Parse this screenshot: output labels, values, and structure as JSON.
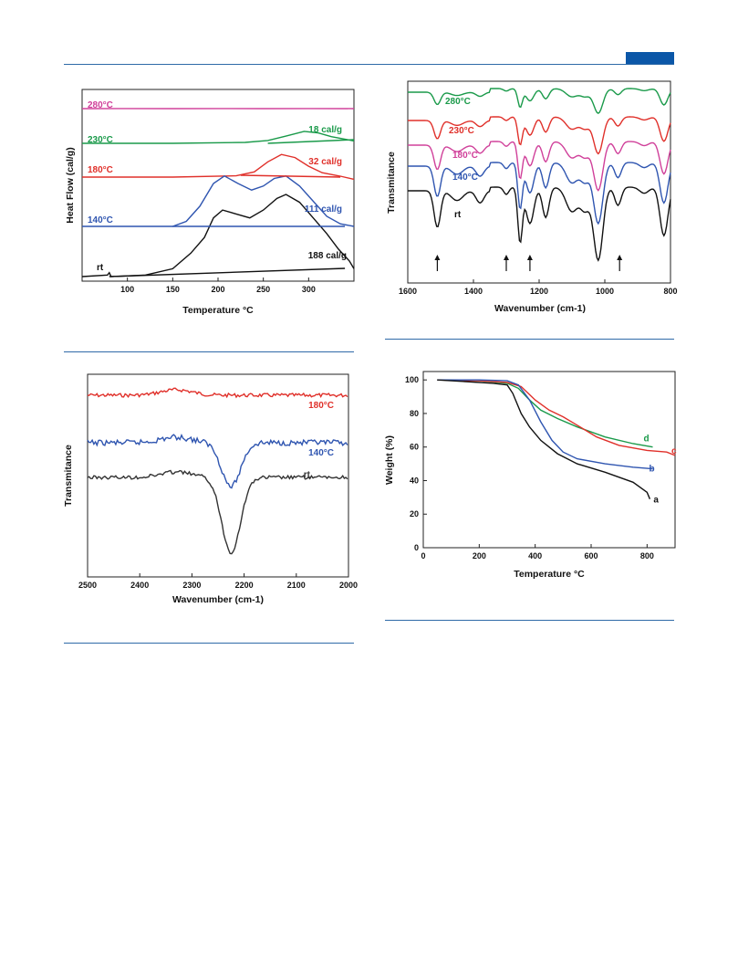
{
  "charts": {
    "dsc": {
      "xlabel": "Temperature °C",
      "ylabel": "Heat Flow (cal/g)",
      "xlim": [
        50,
        350
      ],
      "xticks": [
        "100",
        "150",
        "200",
        "250",
        "300"
      ],
      "curves": [
        {
          "label": "280°C",
          "color": "#d0409a",
          "points": [
            [
              50,
              0
            ],
            [
              100,
              0.01
            ],
            [
              150,
              0
            ],
            [
              200,
              0.01
            ],
            [
              250,
              0
            ],
            [
              300,
              0.01
            ],
            [
              350,
              0
            ]
          ]
        },
        {
          "label": "230°C",
          "color": "#1a9a4a",
          "peak_label": "18 cal/g",
          "points": [
            [
              50,
              0
            ],
            [
              150,
              0
            ],
            [
              230,
              0.02
            ],
            [
              255,
              0.06
            ],
            [
              275,
              0.15
            ],
            [
              295,
              0.25
            ],
            [
              310,
              0.22
            ],
            [
              325,
              0.14
            ],
            [
              350,
              0.05
            ]
          ]
        },
        {
          "label": "180°C",
          "color": "#e0302a",
          "peak_label": "32 cal/g",
          "points": [
            [
              50,
              0
            ],
            [
              150,
              0
            ],
            [
              220,
              0.03
            ],
            [
              240,
              0.12
            ],
            [
              255,
              0.35
            ],
            [
              270,
              0.52
            ],
            [
              285,
              0.45
            ],
            [
              300,
              0.25
            ],
            [
              315,
              0.1
            ],
            [
              335,
              0.02
            ],
            [
              350,
              -0.05
            ]
          ]
        },
        {
          "label": "140°C",
          "color": "#2f55b0",
          "peak_label": "111 cal/g",
          "points": [
            [
              50,
              0
            ],
            [
              150,
              0
            ],
            [
              165,
              0.1
            ],
            [
              180,
              0.4
            ],
            [
              195,
              0.85
            ],
            [
              207,
              1.0
            ],
            [
              222,
              0.85
            ],
            [
              237,
              0.72
            ],
            [
              250,
              0.8
            ],
            [
              262,
              0.95
            ],
            [
              275,
              1.0
            ],
            [
              290,
              0.8
            ],
            [
              305,
              0.5
            ],
            [
              320,
              0.2
            ],
            [
              335,
              0.05
            ],
            [
              350,
              0
            ]
          ]
        },
        {
          "label": "rt",
          "color": "#111111",
          "peak_label": "188 cal/g",
          "points": [
            [
              50,
              0
            ],
            [
              78,
              0.02
            ],
            [
              80,
              0.05
            ],
            [
              82,
              0
            ],
            [
              120,
              0.02
            ],
            [
              150,
              0.1
            ],
            [
              170,
              0.3
            ],
            [
              185,
              0.5
            ],
            [
              195,
              0.75
            ],
            [
              205,
              0.85
            ],
            [
              220,
              0.8
            ],
            [
              235,
              0.75
            ],
            [
              250,
              0.85
            ],
            [
              265,
              1.0
            ],
            [
              275,
              1.05
            ],
            [
              290,
              0.95
            ],
            [
              305,
              0.75
            ],
            [
              320,
              0.55
            ],
            [
              333,
              0.35
            ],
            [
              345,
              0.2
            ],
            [
              350,
              0.1
            ]
          ]
        }
      ]
    },
    "ftir_main": {
      "xlabel": "Wavenumber (cm-1)",
      "ylabel": "Transmitance",
      "xlim": [
        1600,
        800
      ],
      "xticks": [
        "1600",
        "1400",
        "1200",
        "1000",
        "800"
      ],
      "curves": [
        {
          "label": "280°C",
          "color": "#1a9a4a"
        },
        {
          "label": "230°C",
          "color": "#e0302a"
        },
        {
          "label": "180°C",
          "color": "#d0409a"
        },
        {
          "label": "140°C",
          "color": "#2f55b0"
        },
        {
          "label": "rt",
          "color": "#111111"
        }
      ],
      "arrows_at": [
        1510,
        1300,
        1228,
        955
      ]
    },
    "ftir_nitrile": {
      "xlabel": "Wavenumber (cm-1)",
      "ylabel": "Transmitance",
      "xlim": [
        2500,
        2000
      ],
      "xticks": [
        "2500",
        "2400",
        "2300",
        "2200",
        "2100",
        "2000"
      ],
      "curves": [
        {
          "label": "180°C",
          "color": "#e0302a"
        },
        {
          "label": "140°C",
          "color": "#2f55b0"
        },
        {
          "label": "rt",
          "color": "#333333"
        }
      ]
    },
    "tga": {
      "xlabel": "Temperature °C",
      "ylabel": "Weight (%)",
      "xlim": [
        0,
        900
      ],
      "ylim": [
        0,
        105
      ],
      "xticks": [
        "0",
        "200",
        "400",
        "600",
        "800"
      ],
      "yticks": [
        "0",
        "20",
        "40",
        "60",
        "80",
        "100"
      ],
      "curves": [
        {
          "label": "d",
          "color": "#1a9a4a",
          "points": [
            [
              50,
              100
            ],
            [
              200,
              99.5
            ],
            [
              300,
              98
            ],
            [
              340,
              95
            ],
            [
              380,
              88
            ],
            [
              420,
              82
            ],
            [
              480,
              77
            ],
            [
              550,
              72
            ],
            [
              650,
              66
            ],
            [
              750,
              62
            ],
            [
              820,
              60
            ]
          ]
        },
        {
          "label": "c",
          "color": "#e0302a",
          "points": [
            [
              50,
              100
            ],
            [
              200,
              99.5
            ],
            [
              300,
              98.5
            ],
            [
              350,
              96
            ],
            [
              400,
              88
            ],
            [
              450,
              82
            ],
            [
              500,
              78
            ],
            [
              550,
              73
            ],
            [
              620,
              66
            ],
            [
              700,
              61
            ],
            [
              800,
              58
            ],
            [
              870,
              57
            ],
            [
              900,
              55
            ]
          ]
        },
        {
          "label": "b",
          "color": "#2f55b0",
          "points": [
            [
              50,
              100
            ],
            [
              200,
              100
            ],
            [
              300,
              99.5
            ],
            [
              340,
              97
            ],
            [
              380,
              88
            ],
            [
              420,
              75
            ],
            [
              460,
              64
            ],
            [
              500,
              57
            ],
            [
              550,
              53
            ],
            [
              650,
              50
            ],
            [
              750,
              48
            ],
            [
              820,
              47
            ]
          ]
        },
        {
          "label": "a",
          "color": "#111111",
          "points": [
            [
              50,
              100
            ],
            [
              150,
              99
            ],
            [
              250,
              98
            ],
            [
              300,
              97
            ],
            [
              320,
              92
            ],
            [
              350,
              80
            ],
            [
              380,
              72
            ],
            [
              420,
              64
            ],
            [
              480,
              56
            ],
            [
              550,
              50
            ],
            [
              650,
              45
            ],
            [
              750,
              39
            ],
            [
              800,
              33
            ],
            [
              810,
              29
            ]
          ]
        }
      ]
    }
  }
}
